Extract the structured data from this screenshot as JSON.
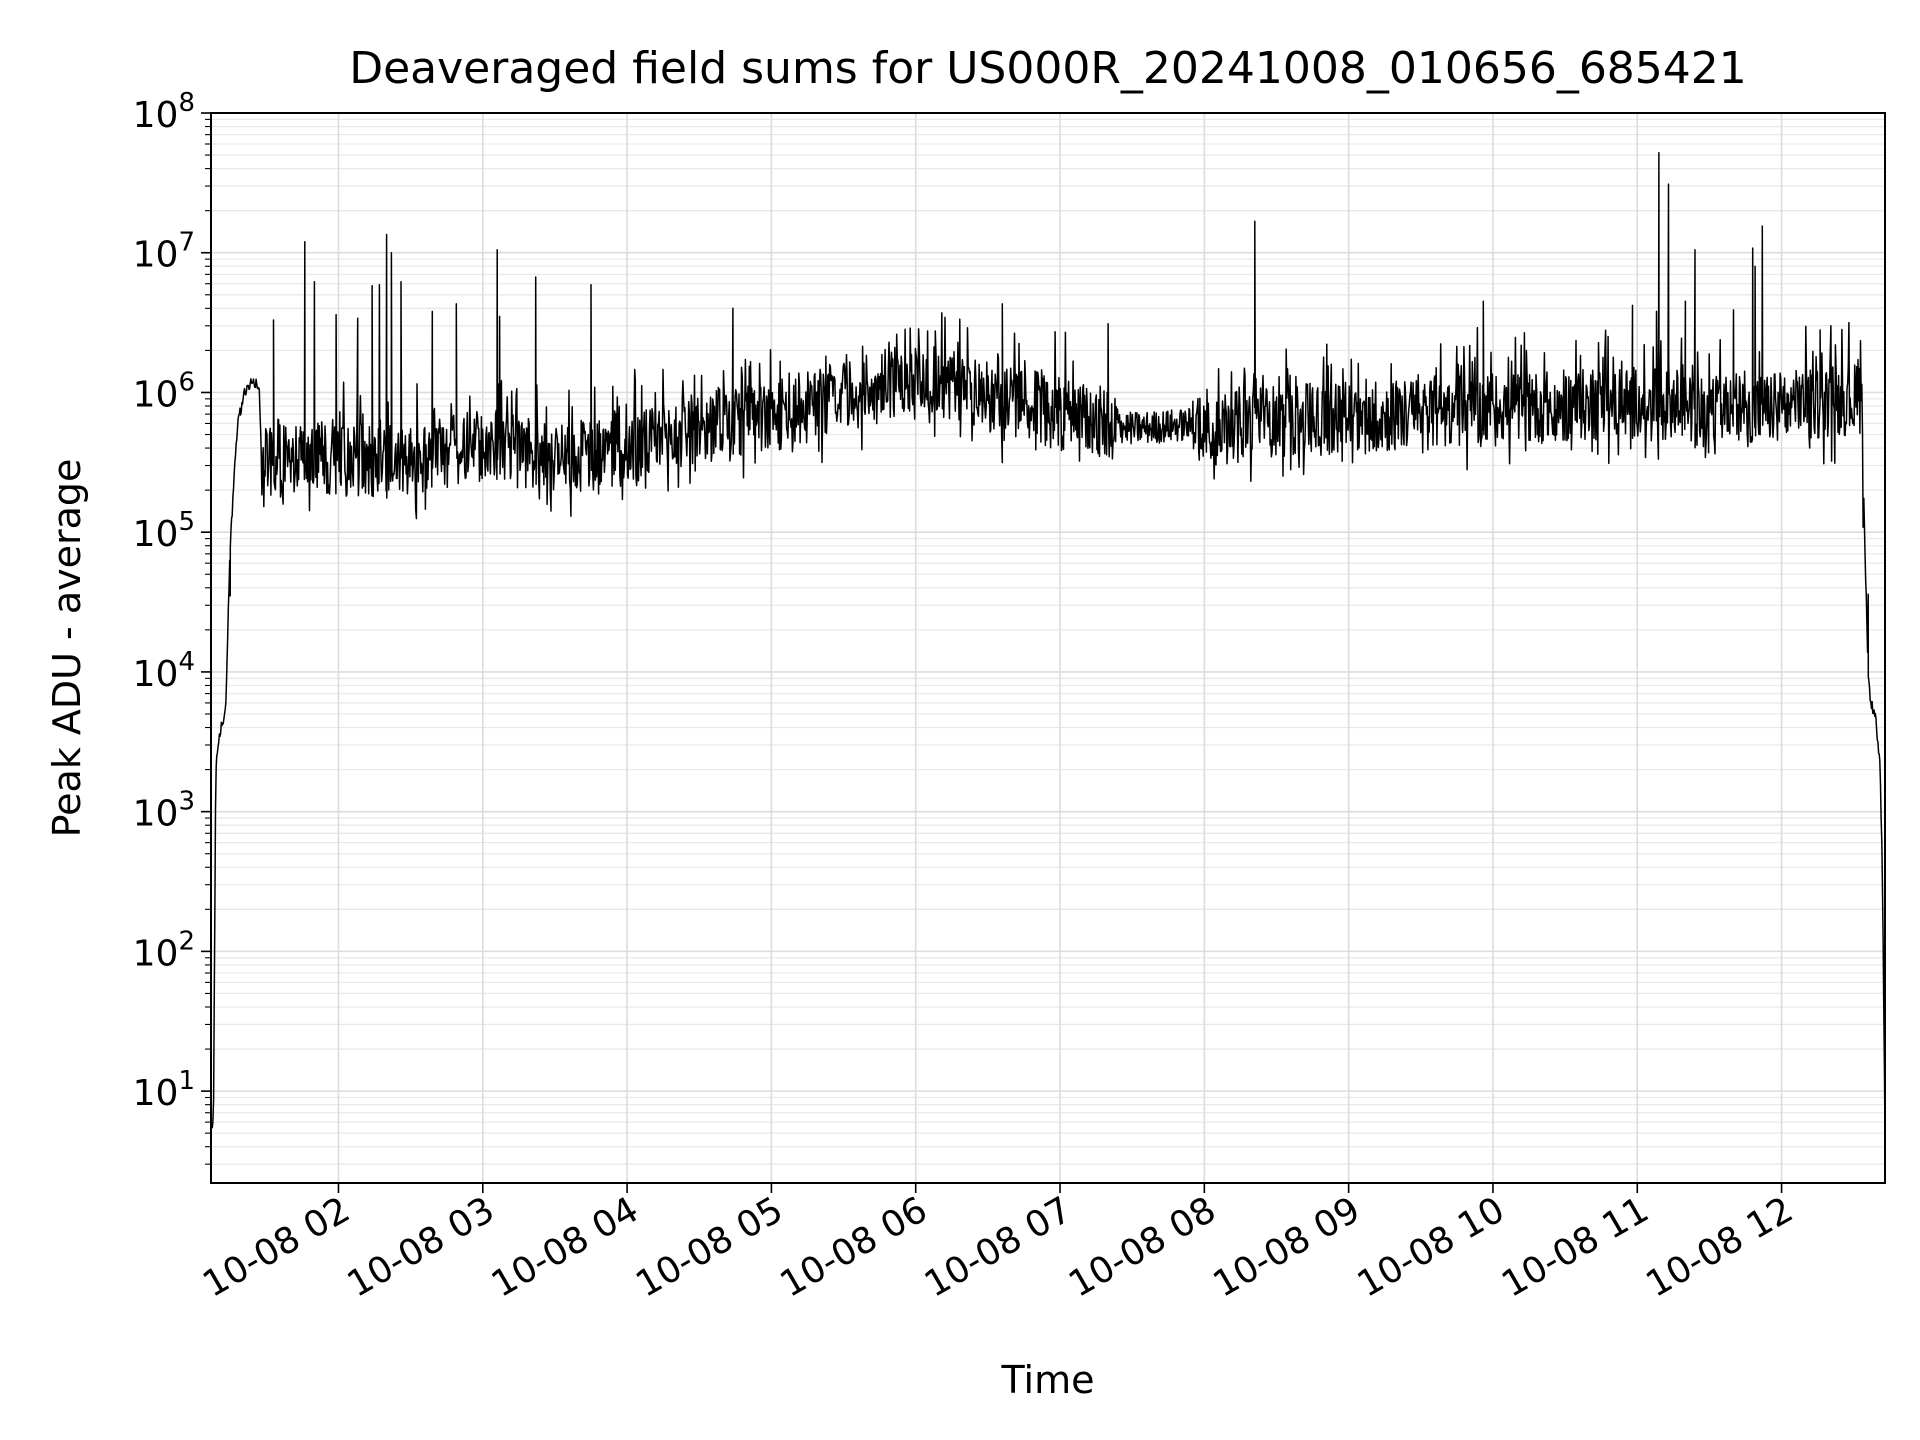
{
  "chart_data": {
    "type": "line",
    "title": "Deaveraged field sums for US000R_20241008_010656_685421",
    "xlabel": "Time",
    "ylabel": "Peak ADU - average",
    "yscale": "log",
    "ylim": [
      2.2,
      100000000
    ],
    "y_tick_values": [
      10,
      100,
      1000,
      10000,
      100000,
      1000000,
      10000000,
      100000000
    ],
    "y_tick_labels": [
      {
        "base": "10",
        "exp": "1"
      },
      {
        "base": "10",
        "exp": "2"
      },
      {
        "base": "10",
        "exp": "3"
      },
      {
        "base": "10",
        "exp": "4"
      },
      {
        "base": "10",
        "exp": "5"
      },
      {
        "base": "10",
        "exp": "6"
      },
      {
        "base": "10",
        "exp": "7"
      },
      {
        "base": "10",
        "exp": "8"
      }
    ],
    "xlim": [
      "2024-10-08T01:07",
      "2024-10-08T12:43"
    ],
    "x_ticks": [
      {
        "time": "2024-10-08T02:00",
        "label": "10-08 02"
      },
      {
        "time": "2024-10-08T03:00",
        "label": "10-08 03"
      },
      {
        "time": "2024-10-08T04:00",
        "label": "10-08 04"
      },
      {
        "time": "2024-10-08T05:00",
        "label": "10-08 05"
      },
      {
        "time": "2024-10-08T06:00",
        "label": "10-08 06"
      },
      {
        "time": "2024-10-08T07:00",
        "label": "10-08 07"
      },
      {
        "time": "2024-10-08T08:00",
        "label": "10-08 08"
      },
      {
        "time": "2024-10-08T09:00",
        "label": "10-08 09"
      },
      {
        "time": "2024-10-08T10:00",
        "label": "10-08 10"
      },
      {
        "time": "2024-10-08T11:00",
        "label": "10-08 11"
      },
      {
        "time": "2024-10-08T12:00",
        "label": "10-08 12"
      }
    ],
    "grid": true,
    "line_color": "#000000",
    "baseline_profile": [
      [
        "2024-10-08T01:07",
        5
      ],
      [
        "2024-10-08T01:08",
        6
      ],
      [
        "2024-10-08T01:09",
        2000
      ],
      [
        "2024-10-08T01:11",
        4000
      ],
      [
        "2024-10-08T01:13",
        5000
      ],
      [
        "2024-10-08T01:15",
        80000
      ],
      [
        "2024-10-08T01:18",
        600000
      ],
      [
        "2024-10-08T01:21",
        1000000
      ],
      [
        "2024-10-08T01:24",
        1200000
      ],
      [
        "2024-10-08T01:27",
        1100000
      ],
      [
        "2024-10-08T01:28",
        320000
      ],
      [
        "2024-10-08T02:00",
        330000
      ],
      [
        "2024-10-08T02:30",
        320000
      ],
      [
        "2024-10-08T03:00",
        420000
      ],
      [
        "2024-10-08T03:30",
        330000
      ],
      [
        "2024-10-08T04:00",
        380000
      ],
      [
        "2024-10-08T04:30",
        560000
      ],
      [
        "2024-10-08T05:00",
        660000
      ],
      [
        "2024-10-08T05:30",
        900000
      ],
      [
        "2024-10-08T06:00",
        1350000
      ],
      [
        "2024-10-08T06:30",
        950000
      ],
      [
        "2024-10-08T07:00",
        700000
      ],
      [
        "2024-10-08T07:30",
        550000
      ],
      [
        "2024-10-08T08:00",
        600000
      ],
      [
        "2024-10-08T09:00",
        650000
      ],
      [
        "2024-10-08T10:00",
        750000
      ],
      [
        "2024-10-08T11:00",
        850000
      ],
      [
        "2024-10-08T11:30",
        700000
      ],
      [
        "2024-10-08T12:00",
        780000
      ],
      [
        "2024-10-08T12:30",
        900000
      ],
      [
        "2024-10-08T12:31",
        1200000
      ],
      [
        "2024-10-08T12:33",
        1000000
      ],
      [
        "2024-10-08T12:36",
        10000
      ],
      [
        "2024-10-08T12:37",
        6000
      ],
      [
        "2024-10-08T12:39",
        5000
      ],
      [
        "2024-10-08T12:41",
        2000
      ],
      [
        "2024-10-08T12:42",
        300
      ],
      [
        "2024-10-08T12:43",
        5
      ]
    ],
    "spikes": [
      [
        "2024-10-08T01:15",
        35000
      ],
      [
        "2024-10-08T01:33",
        3300000
      ],
      [
        "2024-10-08T01:46",
        12000000
      ],
      [
        "2024-10-08T01:50",
        6200000
      ],
      [
        "2024-10-08T01:59",
        3600000
      ],
      [
        "2024-10-08T02:08",
        3400000
      ],
      [
        "2024-10-08T02:14",
        5800000
      ],
      [
        "2024-10-08T02:17",
        5900000
      ],
      [
        "2024-10-08T02:20",
        13500000
      ],
      [
        "2024-10-08T02:22",
        10000000
      ],
      [
        "2024-10-08T02:26",
        6200000
      ],
      [
        "2024-10-08T02:39",
        3800000
      ],
      [
        "2024-10-08T02:49",
        4300000
      ],
      [
        "2024-10-08T03:06",
        10500000
      ],
      [
        "2024-10-08T03:07",
        3500000
      ],
      [
        "2024-10-08T03:22",
        6700000
      ],
      [
        "2024-10-08T03:45",
        5900000
      ],
      [
        "2024-10-08T04:44",
        4000000
      ],
      [
        "2024-10-08T06:36",
        4300000
      ],
      [
        "2024-10-08T07:20",
        3100000
      ],
      [
        "2024-10-08T08:21",
        16800000
      ],
      [
        "2024-10-08T09:56",
        4500000
      ],
      [
        "2024-10-08T10:58",
        4200000
      ],
      [
        "2024-10-08T11:08",
        3800000
      ],
      [
        "2024-10-08T11:09",
        52000000
      ],
      [
        "2024-10-08T11:13",
        31000000
      ],
      [
        "2024-10-08T11:20",
        4500000
      ],
      [
        "2024-10-08T11:24",
        10500000
      ],
      [
        "2024-10-08T11:40",
        3900000
      ],
      [
        "2024-10-08T11:48",
        10800000
      ],
      [
        "2024-10-08T11:49",
        8000000
      ],
      [
        "2024-10-08T11:52",
        15500000
      ],
      [
        "2024-10-08T12:16",
        2800000
      ],
      [
        "2024-10-08T12:36",
        36000
      ]
    ]
  }
}
